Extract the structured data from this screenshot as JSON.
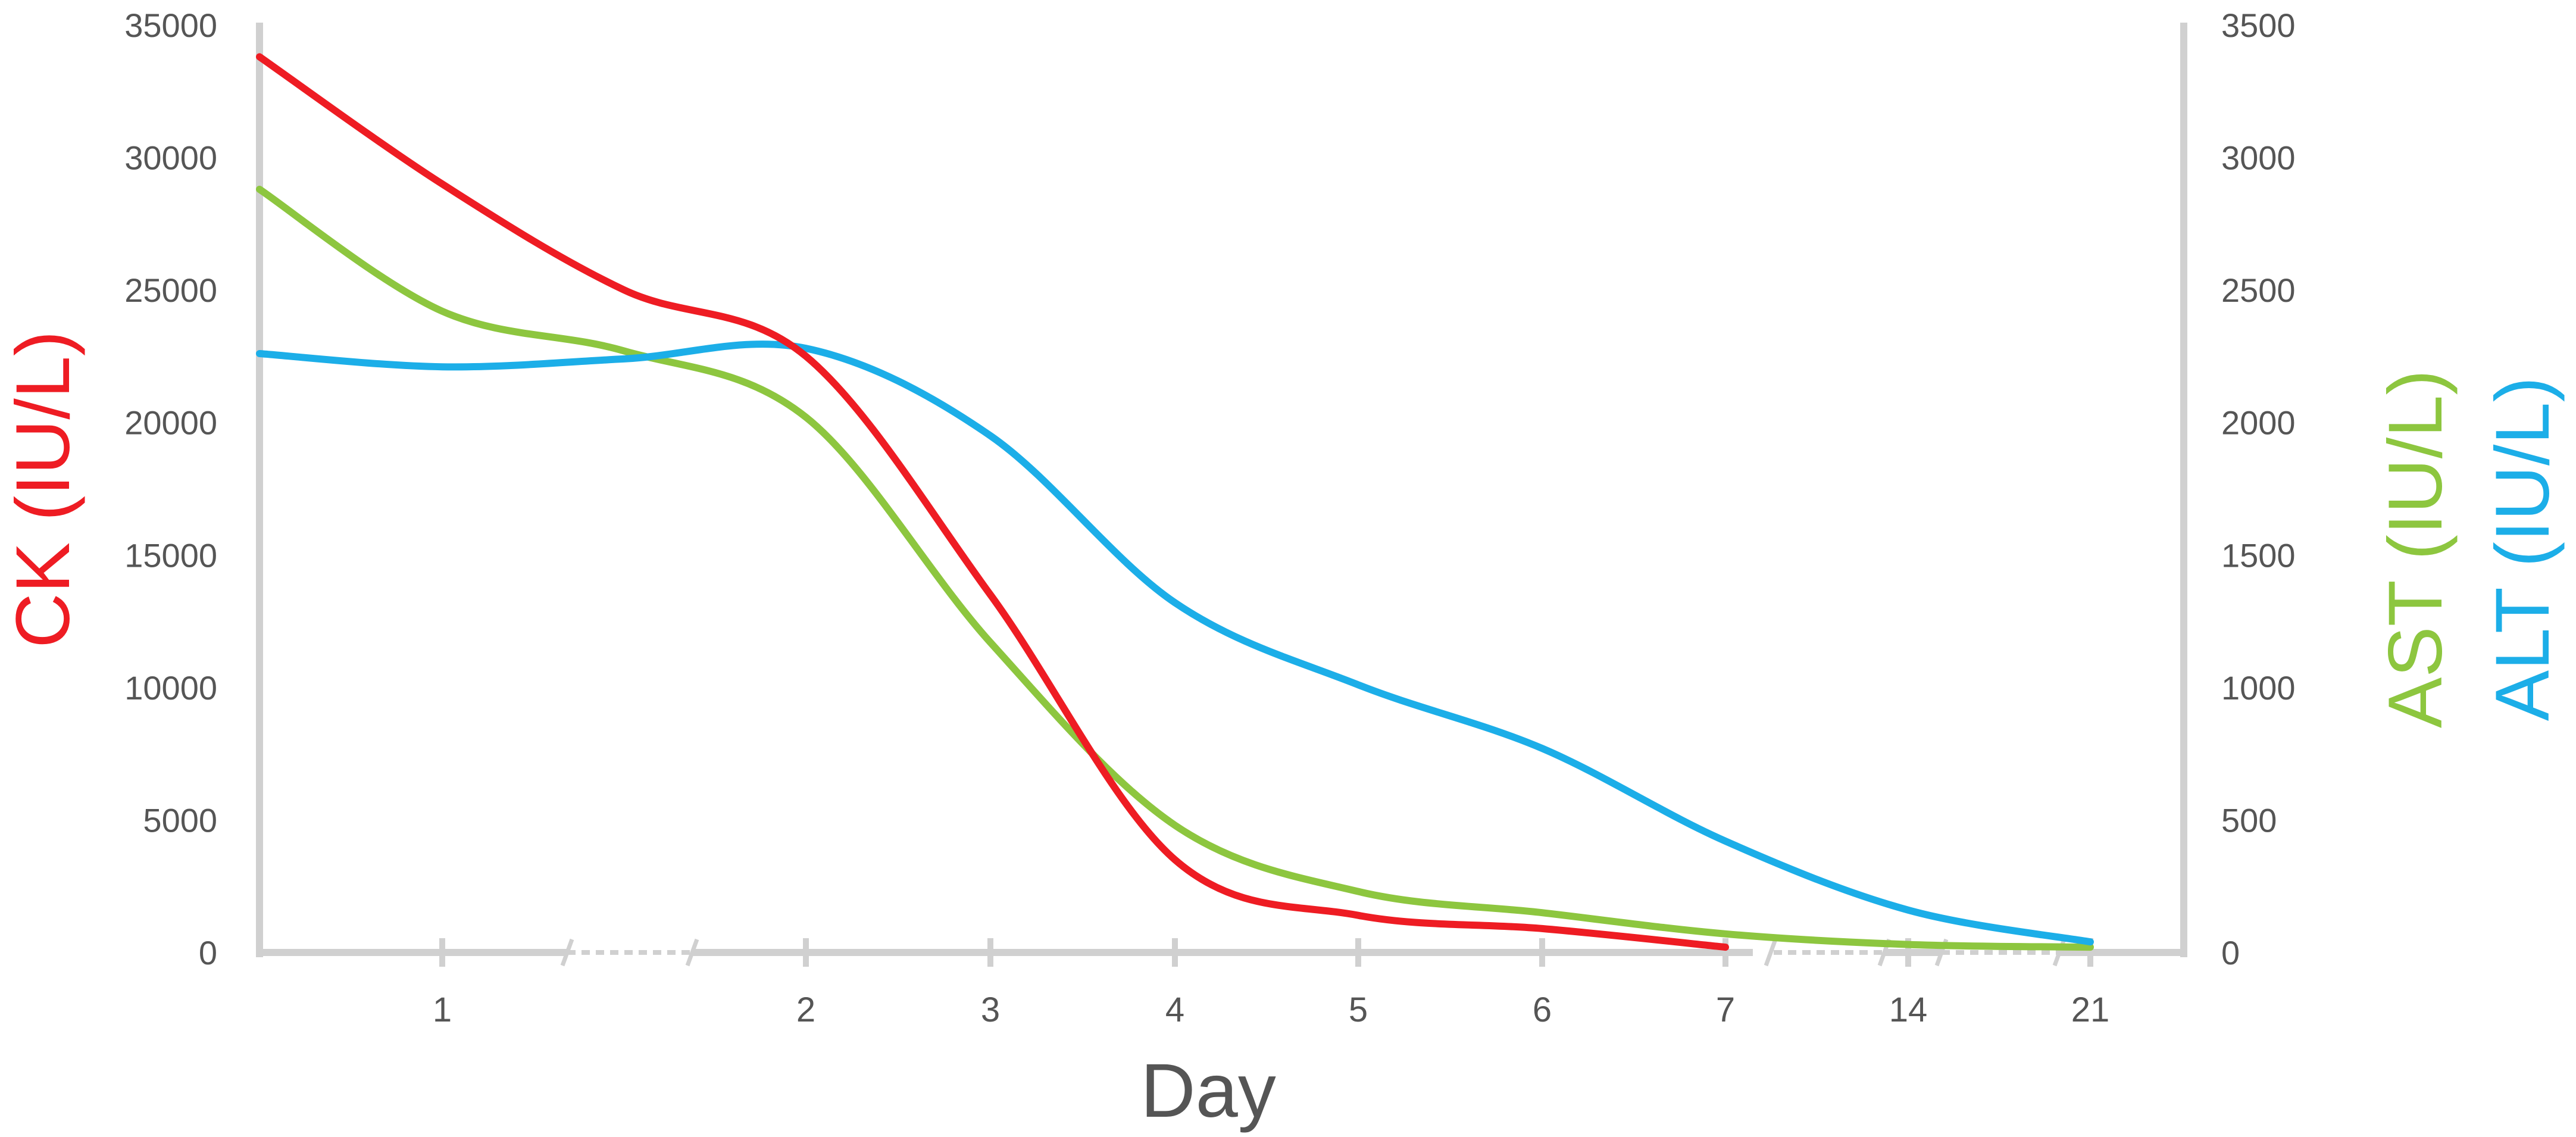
{
  "chart_data": {
    "type": "line",
    "xlabel": "Day",
    "x_ticks": [
      "1",
      "2",
      "3",
      "4",
      "5",
      "6",
      "7",
      "14",
      "21"
    ],
    "y_left": {
      "label": "CK (IU/L)",
      "color": "#ee1c23",
      "ticks": [
        "0",
        "5000",
        "10000",
        "15000",
        "20000",
        "25000",
        "30000",
        "35000"
      ],
      "ylim": [
        0,
        35000
      ]
    },
    "y_right": {
      "labels": [
        {
          "text": "AST (IU/L)",
          "color": "#8dc63f"
        },
        {
          "text": "ALT (IU/L)",
          "color": "#1caee8"
        }
      ],
      "ticks": [
        "0",
        "500",
        "1000",
        "1500",
        "2000",
        "2500",
        "3000",
        "3500"
      ],
      "ylim": [
        0,
        3500
      ]
    },
    "series": [
      {
        "name": "CK (IU/L)",
        "axis": "left",
        "color": "#ee1c23",
        "points": [
          {
            "x": 0,
            "y": 33800
          },
          {
            "x": 1,
            "y": 29000
          },
          {
            "x": 1.5,
            "y": 25000
          },
          {
            "x": 2,
            "y": 22500
          },
          {
            "x": 3,
            "y": 13500
          },
          {
            "x": 4,
            "y": 3500
          },
          {
            "x": 5,
            "y": 1400
          },
          {
            "x": 6,
            "y": 900
          },
          {
            "x": 7,
            "y": 200
          }
        ]
      },
      {
        "name": "AST (IU/L)",
        "axis": "right",
        "color": "#8dc63f",
        "points": [
          {
            "x": 0,
            "y": 2880
          },
          {
            "x": 1,
            "y": 2420
          },
          {
            "x": 1.5,
            "y": 2270
          },
          {
            "x": 2,
            "y": 2020
          },
          {
            "x": 3,
            "y": 1170
          },
          {
            "x": 4,
            "y": 480
          },
          {
            "x": 5,
            "y": 230
          },
          {
            "x": 6,
            "y": 150
          },
          {
            "x": 7,
            "y": 70
          },
          {
            "x": 8,
            "y": 30
          },
          {
            "x": 9,
            "y": 20
          }
        ]
      },
      {
        "name": "ALT (IU/L)",
        "axis": "right",
        "color": "#1caee8",
        "points": [
          {
            "x": 0,
            "y": 2260
          },
          {
            "x": 1,
            "y": 2210
          },
          {
            "x": 1.5,
            "y": 2240
          },
          {
            "x": 2,
            "y": 2280
          },
          {
            "x": 3,
            "y": 1950
          },
          {
            "x": 4,
            "y": 1320
          },
          {
            "x": 5,
            "y": 1010
          },
          {
            "x": 6,
            "y": 770
          },
          {
            "x": 7,
            "y": 420
          },
          {
            "x": 8,
            "y": 160
          },
          {
            "x": 9,
            "y": 40
          }
        ]
      }
    ],
    "grid": false,
    "legend": "none"
  }
}
